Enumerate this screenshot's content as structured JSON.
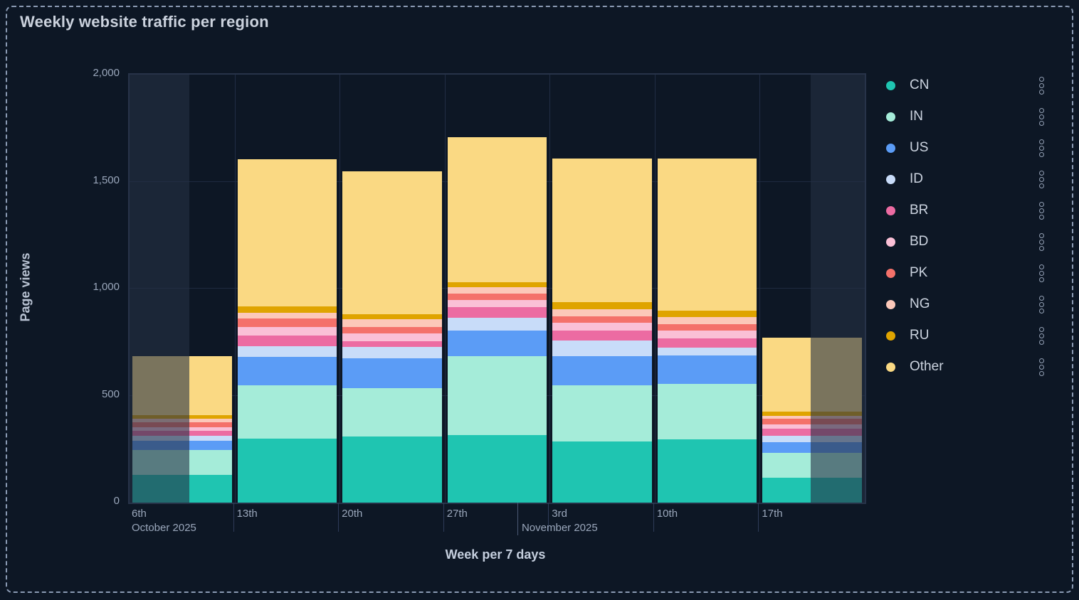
{
  "panel": {
    "title": "Weekly website traffic per region"
  },
  "theme": {
    "background": "#0d1725",
    "dashed_border": "#8b9bb4",
    "highlight_overlay": "rgba(36,48,68,0.6)",
    "grid_color": "#1e2a40",
    "tick_text_color": "#9aa7bb"
  },
  "icons": {
    "legend_item_menu": "kebab-menu-icon"
  },
  "y_axis": {
    "label": "Page views",
    "ticks": [
      {
        "label": "0",
        "value": 0
      },
      {
        "label": "500",
        "value": 500
      },
      {
        "label": "1,000",
        "value": 1000
      },
      {
        "label": "1,500",
        "value": 1500
      },
      {
        "label": "2,000",
        "value": 2000
      }
    ]
  },
  "x_axis": {
    "label": "Week per 7 days",
    "ticks": [
      "6th",
      "13th",
      "20th",
      "27th",
      "3rd",
      "10th",
      "17th"
    ],
    "month_labels": [
      {
        "text": "October 2025",
        "anchor": "range-start"
      },
      {
        "text": "November 2025",
        "anchor": "month-tick"
      }
    ]
  },
  "legend": {
    "items": [
      {
        "label": "CN",
        "color": "#1fc5b1"
      },
      {
        "label": "IN",
        "color": "#a5ecd9"
      },
      {
        "label": "US",
        "color": "#5b9cf6"
      },
      {
        "label": "ID",
        "color": "#c8dcf9"
      },
      {
        "label": "BR",
        "color": "#ec6ba2"
      },
      {
        "label": "BD",
        "color": "#fac0d6"
      },
      {
        "label": "PK",
        "color": "#f4716a"
      },
      {
        "label": "NG",
        "color": "#fcc8b9"
      },
      {
        "label": "RU",
        "color": "#dfa400"
      },
      {
        "label": "Other",
        "color": "#fad983"
      }
    ]
  },
  "chart_data": {
    "type": "bar",
    "stacked": true,
    "title": "Weekly website traffic per region",
    "xlabel": "Week per 7 days",
    "ylabel": "Page views",
    "ylim": [
      0,
      2000
    ],
    "grid": true,
    "legend_position": "right",
    "categories": [
      "Oct 6",
      "Oct 13",
      "Oct 20",
      "Oct 27",
      "Nov 3",
      "Nov 10",
      "Nov 17"
    ],
    "series": [
      {
        "name": "CN",
        "color": "#1fc5b1",
        "values": [
          130,
          300,
          310,
          316,
          285,
          295,
          116
        ]
      },
      {
        "name": "IN",
        "color": "#a5ecd9",
        "values": [
          117,
          248,
          225,
          368,
          263,
          260,
          117
        ]
      },
      {
        "name": "US",
        "color": "#5b9cf6",
        "values": [
          41,
          133,
          140,
          120,
          135,
          133,
          50
        ]
      },
      {
        "name": "ID",
        "color": "#c8dcf9",
        "values": [
          25,
          50,
          52,
          61,
          75,
          37,
          30
        ]
      },
      {
        "name": "BR",
        "color": "#ec6ba2",
        "values": [
          22,
          50,
          29,
          48,
          47,
          41,
          33
        ]
      },
      {
        "name": "BD",
        "color": "#fac0d6",
        "values": [
          19,
          39,
          35,
          33,
          37,
          37,
          19
        ]
      },
      {
        "name": "PK",
        "color": "#f4716a",
        "values": [
          20,
          39,
          31,
          30,
          30,
          32,
          26
        ]
      },
      {
        "name": "NG",
        "color": "#fcc8b9",
        "values": [
          17,
          28,
          35,
          31,
          31,
          34,
          13
        ]
      },
      {
        "name": "RU",
        "color": "#dfa400",
        "values": [
          19,
          30,
          25,
          22,
          33,
          27,
          22
        ]
      },
      {
        "name": "Other",
        "color": "#fad983",
        "values": [
          275,
          688,
          668,
          679,
          672,
          712,
          344
        ]
      }
    ],
    "column_totals": [
      685,
      1605,
      1550,
      1708,
      1608,
      1608,
      770
    ],
    "highlight_bands": [
      {
        "from_frac": 0.0,
        "to_frac": 0.0813
      },
      {
        "from_frac": 0.9264,
        "to_frac": 1.0
      }
    ],
    "month_tick_frac": 0.5295
  }
}
